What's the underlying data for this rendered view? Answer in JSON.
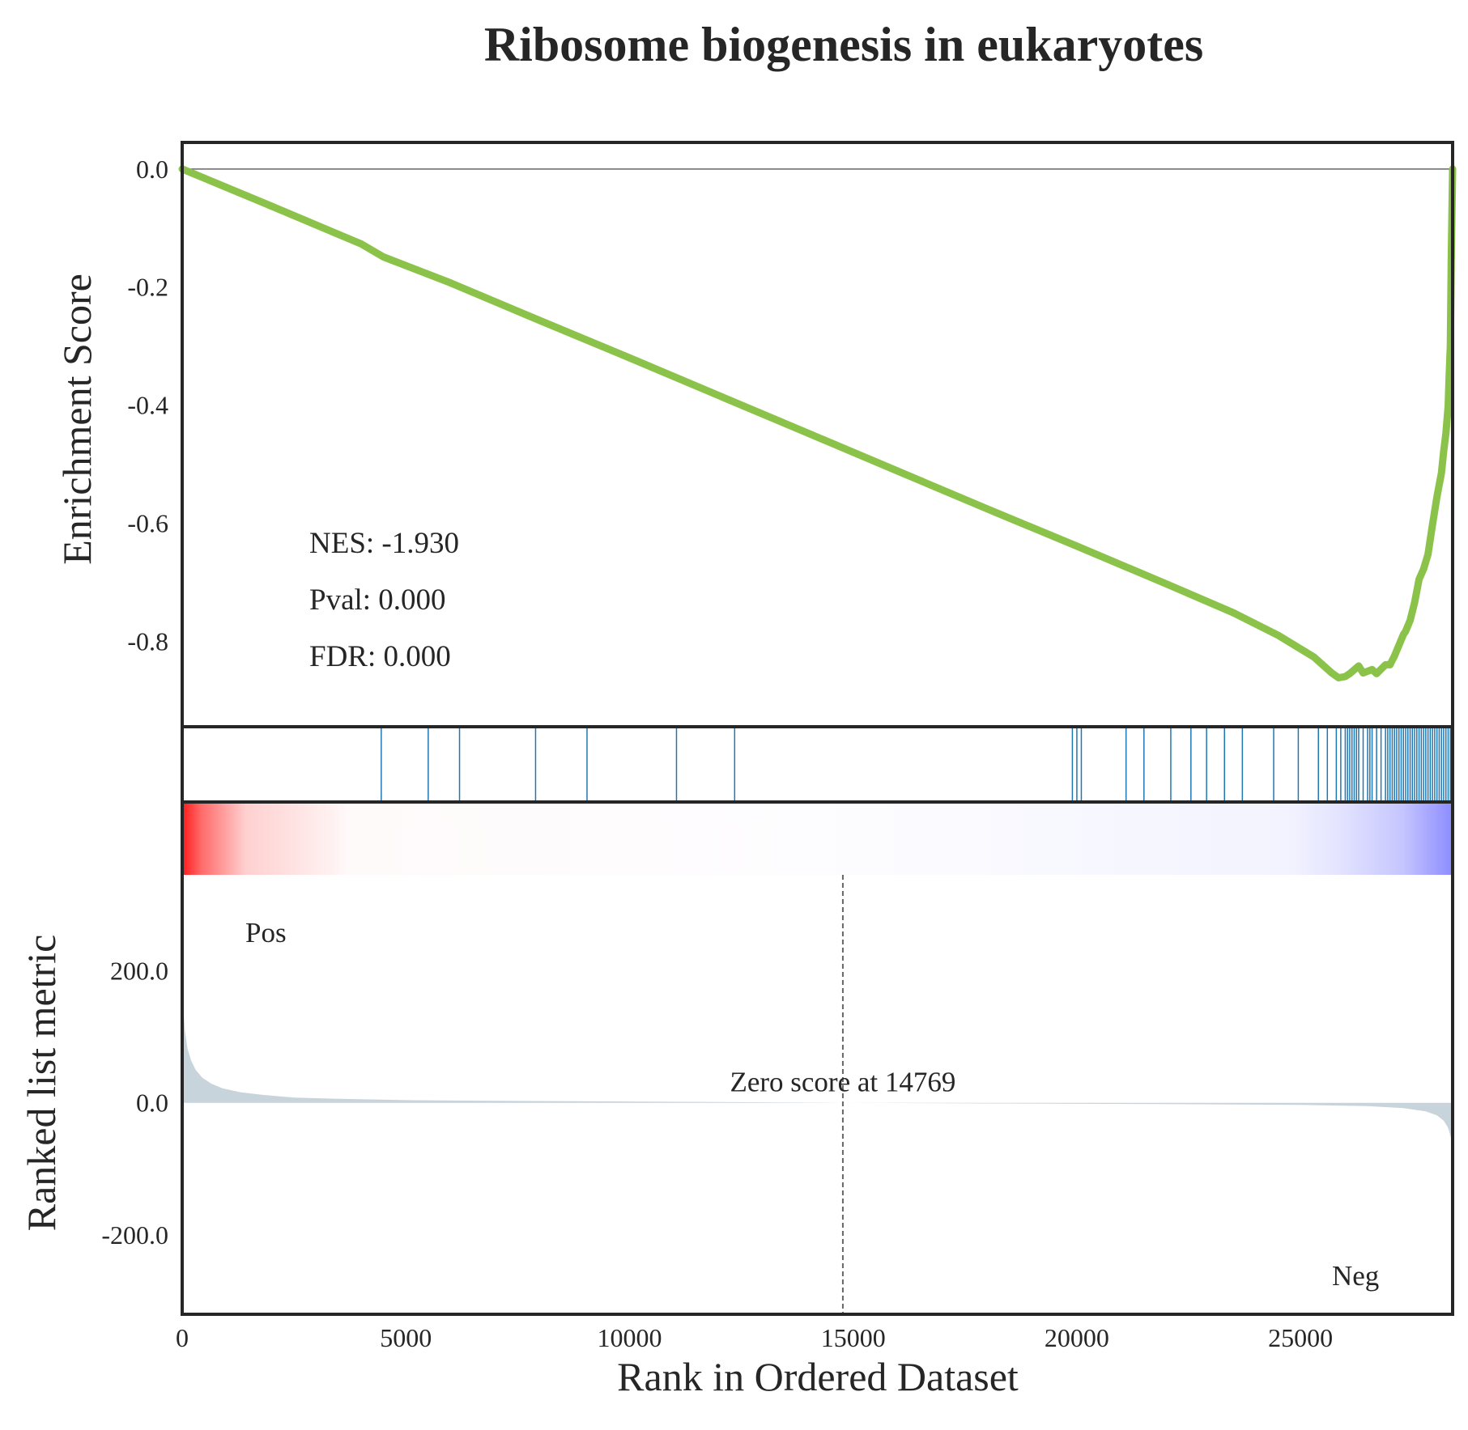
{
  "chart_data": {
    "type": "line",
    "title": "Ribosome biogenesis in eukaryotes",
    "xlabel": "Rank in Ordered Dataset",
    "xlim": [
      0,
      28400
    ],
    "x_ticks": [
      "0",
      "5000",
      "10000",
      "15000",
      "20000",
      "25000"
    ],
    "x_tick_values": [
      0,
      5000,
      10000,
      15000,
      20000,
      25000
    ],
    "panels": {
      "enrichment": {
        "ylabel": "Enrichment Score",
        "ylim": [
          -0.945,
          0.045
        ],
        "y_ticks": [
          "0.0",
          "-0.2",
          "-0.4",
          "-0.6",
          "-0.8"
        ],
        "y_tick_values": [
          0.0,
          -0.2,
          -0.4,
          -0.6,
          -0.8
        ],
        "line_color": "#8bc34a",
        "series": [
          {
            "x": [
              0,
              2000,
              4000,
              4500,
              6000,
              8000,
              10000,
              12000,
              14000,
              16000,
              18000,
              20000,
              22000,
              23500,
              24500,
              25300,
              25700,
              25850,
              26000,
              26100,
              26300,
              26400,
              26600,
              26700,
              26900,
              27000,
              27100,
              27200,
              27300,
              27350,
              27450,
              27550,
              27650,
              27750,
              27850,
              27950,
              28050,
              28150,
              28200,
              28250,
              28300,
              28320,
              28350,
              28370,
              28400
            ],
            "y": [
              0.0,
              -0.063,
              -0.127,
              -0.149,
              -0.193,
              -0.257,
              -0.32,
              -0.384,
              -0.448,
              -0.512,
              -0.576,
              -0.639,
              -0.703,
              -0.752,
              -0.79,
              -0.827,
              -0.854,
              -0.862,
              -0.86,
              -0.855,
              -0.842,
              -0.854,
              -0.848,
              -0.855,
              -0.84,
              -0.84,
              -0.825,
              -0.807,
              -0.789,
              -0.783,
              -0.765,
              -0.735,
              -0.695,
              -0.678,
              -0.653,
              -0.603,
              -0.555,
              -0.515,
              -0.478,
              -0.448,
              -0.402,
              -0.355,
              -0.299,
              -0.155,
              0.0
            ]
          }
        ],
        "stats": [
          "NES: -1.930",
          "Pval: 0.000",
          "FDR: 0.000"
        ]
      },
      "hits": {
        "color": "#1f77b4",
        "positions": [
          4450,
          5500,
          6200,
          7900,
          9050,
          11050,
          12350,
          19900,
          20000,
          20100,
          21100,
          21500,
          22100,
          22550,
          22900,
          23300,
          23700,
          24400,
          24950,
          25400,
          25600,
          25800,
          25900,
          26000,
          26050,
          26100,
          26150,
          26200,
          26250,
          26300,
          26400,
          26500,
          26550,
          26600,
          26700,
          26800,
          26900,
          26950,
          27000,
          27050,
          27100,
          27150,
          27200,
          27250,
          27300,
          27350,
          27400,
          27450,
          27500,
          27550,
          27600,
          27650,
          27700,
          27750,
          27800,
          27850,
          27900,
          27950,
          28000,
          28050,
          28100,
          28150,
          28200,
          28250,
          28300,
          28350
        ]
      },
      "heatmap": {
        "pos_color": "#ff0000",
        "neg_color": "#0000ff"
      },
      "metric": {
        "ylabel": "Ranked list metric",
        "ylim": [
          -320,
          345
        ],
        "y_ticks": [
          "200.0",
          "0.0",
          "-200.0"
        ],
        "y_tick_values": [
          200,
          0,
          -200
        ],
        "fill_color": "#c8d4dc",
        "series": [
          {
            "x": [
              0,
              20,
              60,
              120,
              200,
              300,
              450,
              650,
              900,
              1300,
              1800,
              2500,
              3500,
              5000,
              7000,
              10000,
              14769,
              18000,
              22000,
              25000,
              26500,
              27300,
              27800,
              28050,
              28200,
              28300,
              28360,
              28400
            ],
            "y": [
              215,
              150,
              110,
              82,
              64,
              50,
              38,
              29,
              22,
              16,
              12,
              8,
              6,
              4,
              3,
              2,
              0,
              -1,
              -2,
              -3,
              -5,
              -8,
              -13,
              -19,
              -27,
              -38,
              -52,
              -70
            ]
          }
        ],
        "zero_score_x": 14769,
        "zero_label": "Zero score at 14769",
        "pos_label": "Pos",
        "neg_label": "Neg",
        "pos_color": "#ff0000",
        "neg_color": "#0000ff"
      }
    }
  }
}
